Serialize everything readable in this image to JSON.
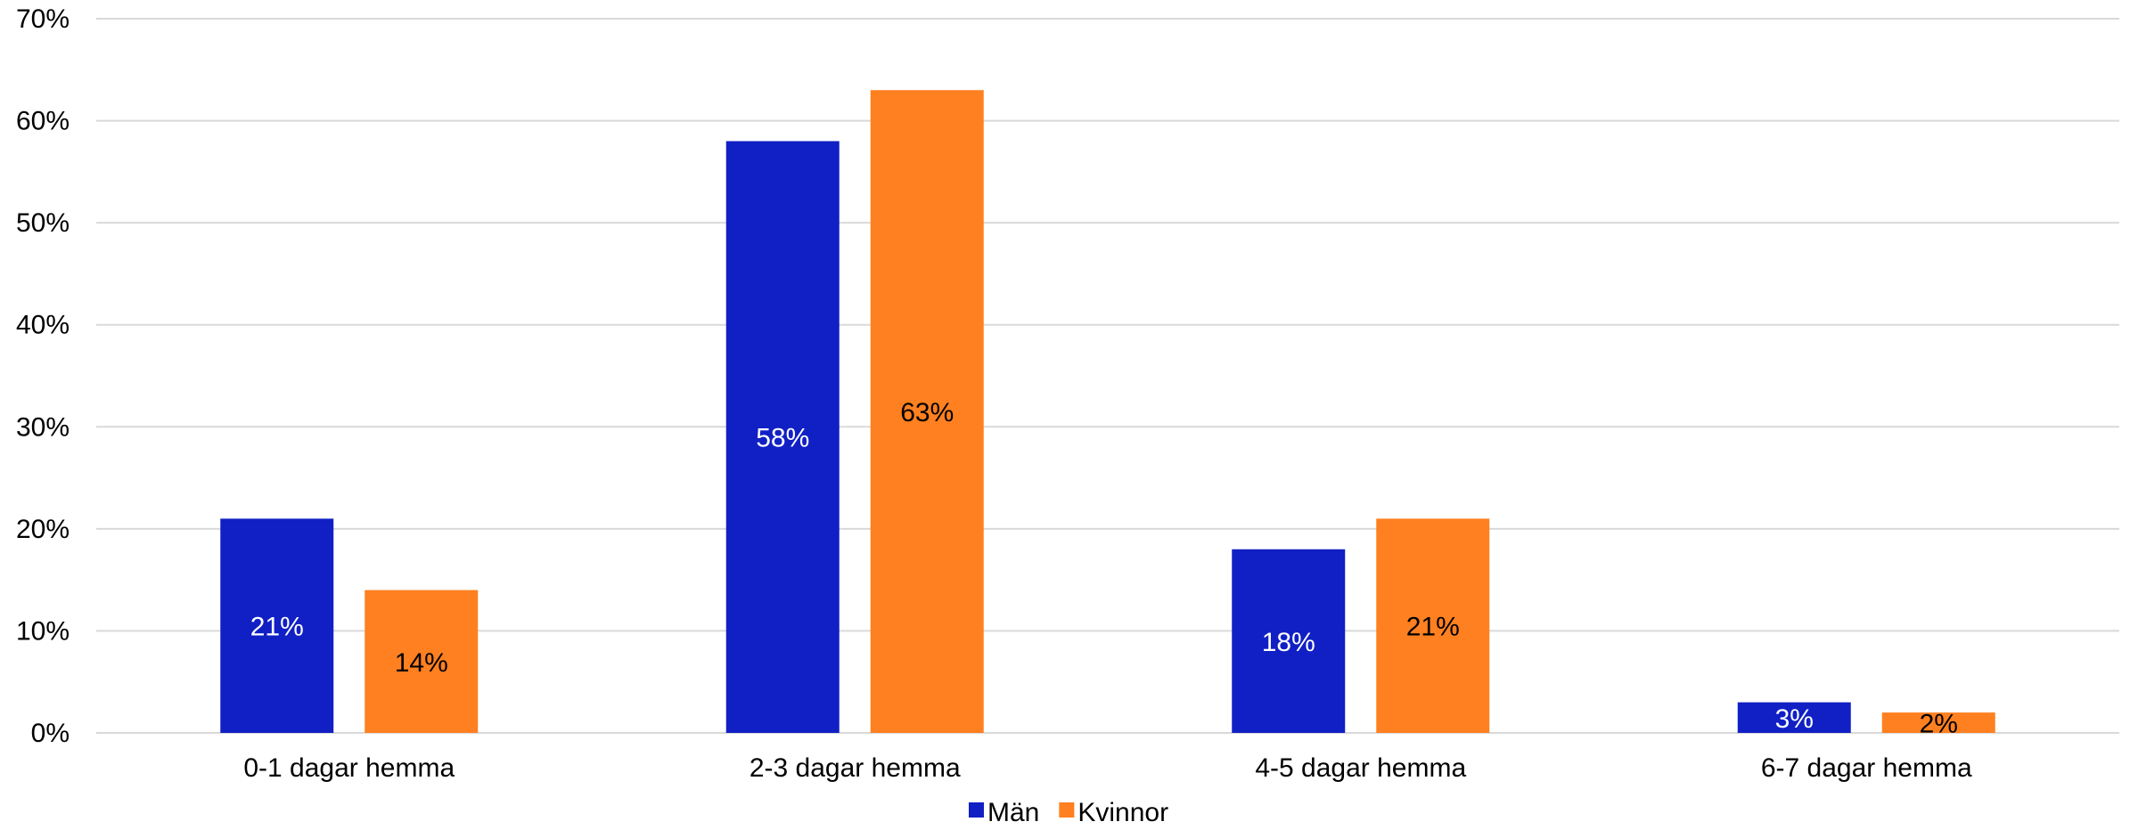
{
  "chart_data": {
    "type": "bar",
    "title": "",
    "xlabel": "",
    "ylabel": "",
    "categories": [
      "0-1 dagar hemma",
      "2-3 dagar hemma",
      "4-5 dagar hemma",
      "6-7 dagar hemma"
    ],
    "series": [
      {
        "name": "Män",
        "values": [
          21,
          58,
          18,
          3
        ],
        "labels": [
          "21%",
          "58%",
          "18%",
          "3%"
        ],
        "color": "#1120c4",
        "label_color": "#ffffff"
      },
      {
        "name": "Kvinnor",
        "values": [
          14,
          63,
          21,
          2
        ],
        "labels": [
          "14%",
          "63%",
          "21%",
          "2%"
        ],
        "color": "#ff8020",
        "label_color": "#000000"
      }
    ],
    "ylim": [
      0,
      70
    ],
    "yticks": [
      0,
      10,
      20,
      30,
      40,
      50,
      60,
      70
    ],
    "ytick_labels": [
      "0%",
      "10%",
      "20%",
      "30%",
      "40%",
      "50%",
      "60%",
      "70%"
    ],
    "grid": true,
    "legend_position": "bottom-center"
  }
}
